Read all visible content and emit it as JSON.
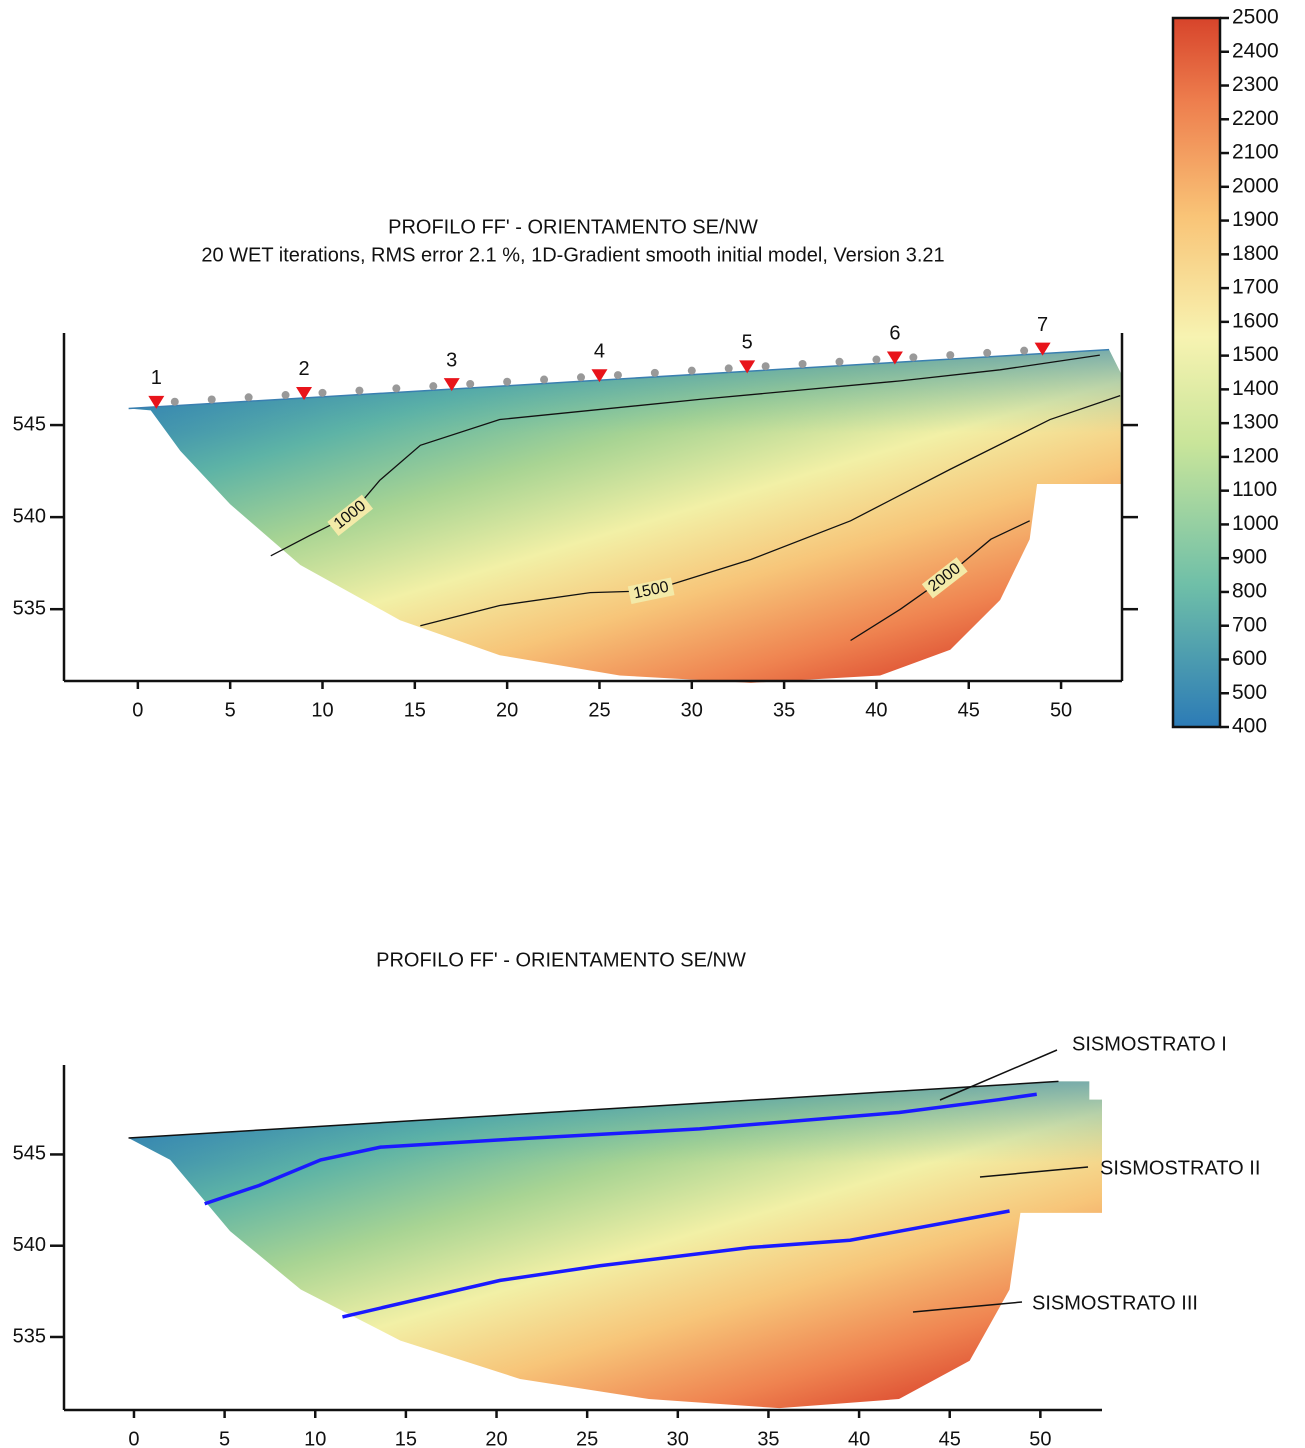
{
  "chart_data": [
    {
      "type": "tomography",
      "title": "PROFILO FF' - ORIENTAMENTO SE/NW",
      "subtitle": "20 WET iterations, RMS error 2.1 %, 1D-Gradient smooth initial model, Version 3.21",
      "xlim": [
        -4,
        53.3
      ],
      "ylim": [
        531.1,
        550
      ],
      "xticks": [
        0,
        5,
        10,
        15,
        20,
        25,
        30,
        35,
        40,
        45,
        50
      ],
      "yticks": [
        535,
        540,
        545
      ],
      "surface": {
        "x": [
          -0.5,
          52.6
        ],
        "y": [
          545.9,
          549.1
        ]
      },
      "model_outline": {
        "x": [
          -0.5,
          52.6,
          53.3,
          53.3,
          48.7,
          48.3,
          46.7,
          44,
          40.2,
          33.2,
          26.1,
          19.6,
          14.2,
          8.8,
          5,
          2.3,
          0.7
        ],
        "y": [
          545.9,
          549.1,
          547.7,
          541.8,
          541.8,
          538.8,
          535.5,
          532.8,
          531.4,
          531.0,
          531.4,
          532.5,
          534.4,
          537.4,
          540.7,
          543.6,
          545.8
        ]
      },
      "shots": {
        "labels": [
          1,
          2,
          3,
          4,
          5,
          6,
          7
        ],
        "x": [
          1,
          9,
          17,
          25,
          33,
          41,
          49
        ]
      },
      "geophones": [
        2,
        4,
        6,
        8,
        10,
        12,
        14,
        16,
        18,
        20,
        22,
        24,
        26,
        28,
        30,
        32,
        34,
        36,
        38,
        40,
        42,
        44,
        46,
        48
      ],
      "contours": [
        {
          "label": 1000,
          "x": [
            7.2,
            9.3,
            11.5,
            13.1,
            15.3,
            19.6,
            30.5,
            41.3,
            46.7,
            52.1
          ],
          "y": [
            537.9,
            539.0,
            540.1,
            542.0,
            543.9,
            545.3,
            546.4,
            547.4,
            548.0,
            548.8
          ]
        },
        {
          "label": 1500,
          "x": [
            15.3,
            19.6,
            24.5,
            27.8,
            33.2,
            38.6,
            44,
            49.4,
            53.2
          ],
          "y": [
            534.1,
            535.2,
            535.9,
            536.0,
            537.7,
            539.8,
            542.6,
            545.3,
            546.6
          ]
        },
        {
          "label": 2000,
          "x": [
            38.6,
            41.3,
            43.7,
            46.2,
            48.3
          ],
          "y": [
            533.3,
            535.0,
            536.7,
            538.8,
            539.8
          ]
        }
      ],
      "colorbar": {
        "lim": [
          400,
          2500
        ],
        "ticks": [
          400,
          500,
          600,
          700,
          800,
          900,
          1000,
          1100,
          1200,
          1300,
          1400,
          1500,
          1600,
          1700,
          1800,
          1900,
          2000,
          2100,
          2200,
          2300,
          2400,
          2500
        ]
      }
    },
    {
      "type": "section",
      "title": "PROFILO FF' - ORIENTAMENTO SE/NW",
      "xlim": [
        -3.86,
        53.4
      ],
      "ylim": [
        531.0,
        549.9
      ],
      "xticks": [
        0,
        5,
        10,
        15,
        20,
        25,
        30,
        35,
        40,
        45,
        50
      ],
      "yticks": [
        535,
        540,
        545
      ],
      "surface": {
        "x": [
          -0.3,
          51.0
        ],
        "y": [
          545.9,
          549.0
        ]
      },
      "model_outline": {
        "x": [
          -0.3,
          51.0,
          52.7,
          52.7,
          53.4,
          53.4,
          48.9,
          48.3,
          46.1,
          42.2,
          35.6,
          28.4,
          21.3,
          14.7,
          9.2,
          5.3,
          2
        ],
        "y": [
          545.9,
          549.0,
          549.0,
          548.0,
          548.0,
          541.8,
          541.8,
          537.6,
          533.7,
          531.6,
          531.1,
          531.6,
          532.7,
          534.8,
          537.6,
          540.8,
          544.7
        ]
      },
      "series": [
        {
          "name": "SISMOSTRATO I",
          "color": "#1a1aff",
          "x": [
            3.9,
            6.9,
            10.3,
            13.6,
            20.2,
            31.2,
            42.2,
            47.7,
            49.8
          ],
          "y": [
            542.3,
            543.3,
            544.7,
            545.4,
            545.8,
            546.4,
            547.3,
            548.0,
            548.3
          ]
        },
        {
          "name": "SISMOSTRATO II",
          "color": "#1a1aff",
          "x": [
            11.5,
            20.2,
            25.7,
            34,
            39.5,
            45,
            48.3
          ],
          "y": [
            536.1,
            538.1,
            538.9,
            539.9,
            540.3,
            541.3,
            541.9
          ]
        }
      ],
      "annotations": [
        "SISMOSTRATO I",
        "SISMOSTRATO II",
        "SISMOSTRATO III"
      ]
    }
  ]
}
